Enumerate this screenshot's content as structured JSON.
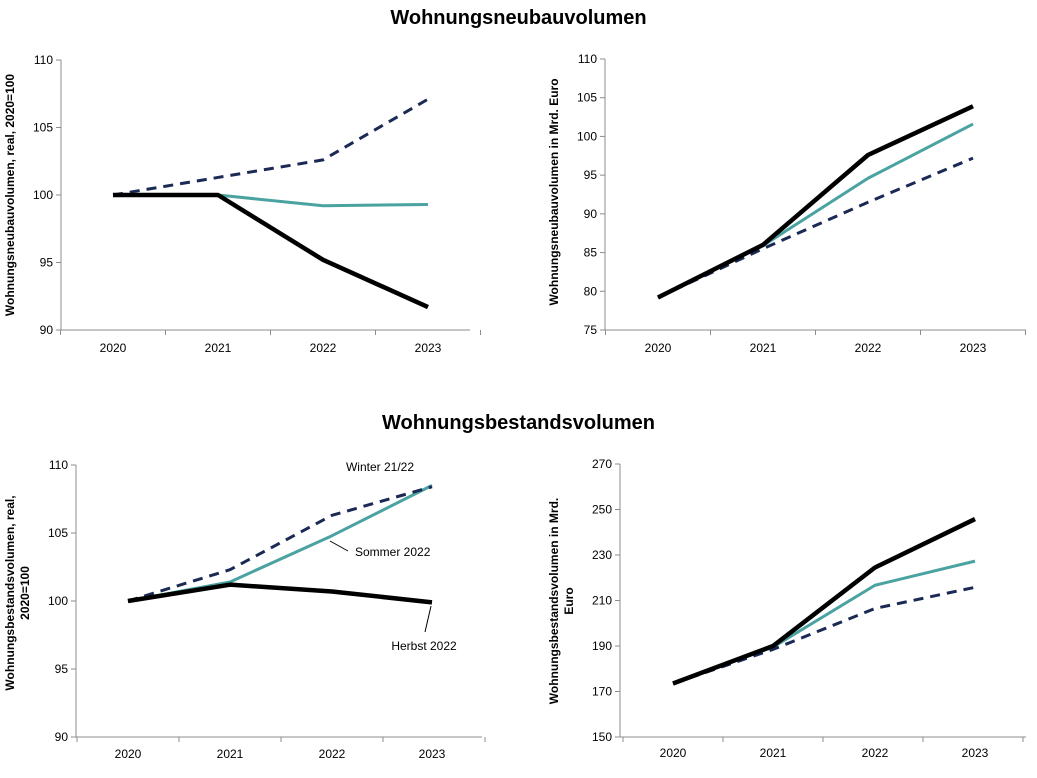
{
  "sections": {
    "top_title": "Wohnungsneubauvolumen",
    "bottom_title": "Wohnungsbestandsvolumen"
  },
  "colors": {
    "winter": "#1b2a55",
    "sommer": "#4aa3a0",
    "herbst": "#000000"
  },
  "chart_data": [
    {
      "id": "neubau-index",
      "type": "line",
      "title": "",
      "xlabel": "",
      "ylabel": "Wohnungsneubauvolumen, real, 2020=100",
      "categories": [
        "2020",
        "2021",
        "2022",
        "2023"
      ],
      "ylim": [
        90,
        110
      ],
      "yticks": [
        90,
        95,
        100,
        105,
        110
      ],
      "grid": false,
      "series": [
        {
          "key": "winter",
          "values": [
            100,
            101.3,
            102.6,
            107.1
          ]
        },
        {
          "key": "sommer",
          "values": [
            100,
            100,
            99.2,
            99.3
          ]
        },
        {
          "key": "herbst",
          "values": [
            100,
            100,
            95.2,
            91.7
          ]
        }
      ]
    },
    {
      "id": "neubau-nominal",
      "type": "line",
      "title": "",
      "xlabel": "",
      "ylabel": "Wohnungsneubauvolumen in Mrd. Euro",
      "categories": [
        "2020",
        "2021",
        "2022",
        "2023"
      ],
      "ylim": [
        75,
        110
      ],
      "yticks": [
        75,
        80,
        85,
        90,
        95,
        100,
        105,
        110
      ],
      "grid": false,
      "series": [
        {
          "key": "winter",
          "values": [
            79.2,
            85.5,
            91.5,
            97.2
          ]
        },
        {
          "key": "sommer",
          "values": [
            79.2,
            85.9,
            94.6,
            101.6
          ]
        },
        {
          "key": "herbst",
          "values": [
            79.2,
            86.0,
            97.6,
            103.9
          ]
        }
      ]
    },
    {
      "id": "bestand-index",
      "type": "line",
      "title": "",
      "xlabel": "",
      "ylabel": "Wohnungsbestandsvolumen, real, 2020=100",
      "categories": [
        "2020",
        "2021",
        "2022",
        "2023"
      ],
      "ylim": [
        90,
        110
      ],
      "yticks": [
        90,
        95,
        100,
        105,
        110
      ],
      "grid": false,
      "series": [
        {
          "key": "winter",
          "values": [
            100,
            102.3,
            106.3,
            108.4
          ]
        },
        {
          "key": "sommer",
          "values": [
            100,
            101.4,
            104.8,
            108.5
          ]
        },
        {
          "key": "herbst",
          "values": [
            100,
            101.2,
            100.7,
            99.9
          ]
        }
      ],
      "annotations": {
        "winter": "Winter 21/22",
        "sommer": "Sommer 2022",
        "herbst": "Herbst 2022"
      }
    },
    {
      "id": "bestand-nominal",
      "type": "line",
      "title": "",
      "xlabel": "",
      "ylabel": "Wohnungsbestandsvolumen in Mrd. Euro",
      "categories": [
        "2020",
        "2021",
        "2022",
        "2023"
      ],
      "ylim": [
        150,
        270
      ],
      "yticks": [
        150,
        170,
        190,
        210,
        230,
        250,
        270
      ],
      "grid": false,
      "series": [
        {
          "key": "winter",
          "values": [
            173.5,
            188.5,
            206.5,
            215.8
          ]
        },
        {
          "key": "sommer",
          "values": [
            173.5,
            189.5,
            216.7,
            227.3
          ]
        },
        {
          "key": "herbst",
          "values": [
            173.5,
            190.0,
            224.5,
            245.8
          ]
        }
      ]
    }
  ]
}
